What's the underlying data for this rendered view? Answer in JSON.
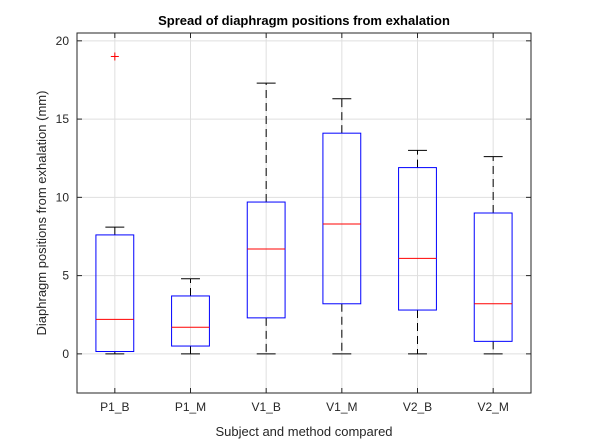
{
  "chart_data": {
    "type": "box",
    "title": "Spread of diaphragm positions from exhalation",
    "xlabel": "Subject and method compared",
    "ylabel": "Diaphragm positions from exhalation (mm)",
    "ylim": [
      -2.5,
      20.5
    ],
    "yticks": [
      0,
      5,
      10,
      15,
      20
    ],
    "grid": true,
    "categories": [
      "P1_B",
      "P1_M",
      "V1_B",
      "V1_M",
      "V2_B",
      "V2_M"
    ],
    "boxes": [
      {
        "category": "P1_B",
        "whisker_low": 0.0,
        "q1": 0.15,
        "median": 2.2,
        "q3": 7.6,
        "whisker_high": 8.1,
        "outliers": [
          19.0
        ]
      },
      {
        "category": "P1_M",
        "whisker_low": 0.0,
        "q1": 0.5,
        "median": 1.7,
        "q3": 3.7,
        "whisker_high": 4.8,
        "outliers": []
      },
      {
        "category": "V1_B",
        "whisker_low": 0.0,
        "q1": 2.3,
        "median": 6.7,
        "q3": 9.7,
        "whisker_high": 17.3,
        "outliers": []
      },
      {
        "category": "V1_M",
        "whisker_low": 0.0,
        "q1": 3.2,
        "median": 8.3,
        "q3": 14.1,
        "whisker_high": 16.3,
        "outliers": []
      },
      {
        "category": "V2_B",
        "whisker_low": 0.0,
        "q1": 2.8,
        "median": 6.1,
        "q3": 11.9,
        "whisker_high": 13.0,
        "outliers": []
      },
      {
        "category": "V2_M",
        "whisker_low": 0.0,
        "q1": 0.8,
        "median": 3.2,
        "q3": 9.0,
        "whisker_high": 12.6,
        "outliers": []
      }
    ],
    "colors": {
      "box": "#0000ff",
      "median": "#ff0000",
      "whisker": "#000000",
      "outlier": "#ff0000",
      "grid": "#dfdfdf",
      "axis": "#262626"
    }
  }
}
